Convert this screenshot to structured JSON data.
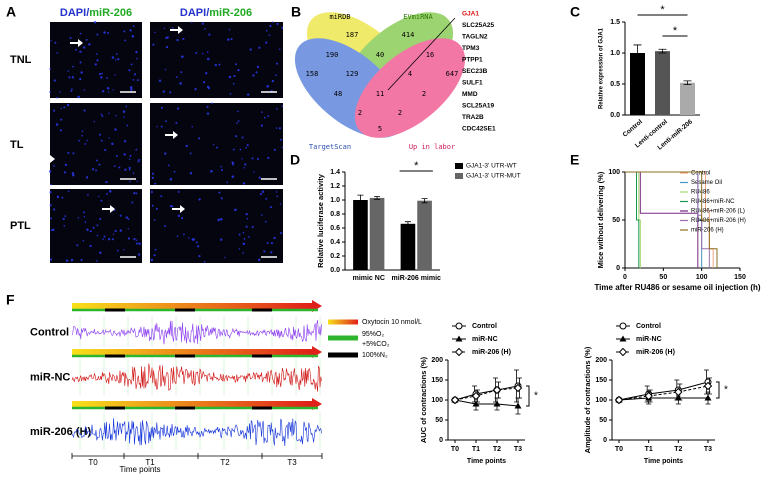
{
  "panel_a": {
    "letter": "A",
    "headers": [
      {
        "stain": "DAPI/",
        "marker": "miR-206"
      },
      {
        "stain": "DAPI/",
        "marker": "miR-206"
      }
    ],
    "rows": [
      "TNL",
      "TL",
      "PTL"
    ]
  },
  "panel_b": {
    "letter": "B",
    "sets": [
      "miRDB",
      "EVmiRNA",
      "TargetScan",
      "Up in labor"
    ],
    "counts": [
      "187",
      "414",
      "190",
      "40",
      "16",
      "158",
      "129",
      "4",
      "647",
      "48",
      "11",
      "2",
      "2",
      "2",
      "5"
    ],
    "genes": [
      "GJA1",
      "SLC25A25",
      "TAGLN2",
      "TPM3",
      "PTPP1",
      "SEC23B",
      "SULF1",
      "MMD",
      "SCL25A19",
      "TRA2B",
      "CDC42SE1"
    ]
  },
  "panel_f": {
    "letter": "F",
    "rows": [
      "Control",
      "miR-NC",
      "miR-206 (H)"
    ],
    "legend": [
      {
        "label": [
          "Oxytocin 10 nmol/L"
        ],
        "color": "#f04020"
      },
      {
        "label": [
          "95%O₂",
          "+5%CO₂"
        ],
        "color": "#2db52d"
      },
      {
        "label": [
          "100%N₂"
        ],
        "color": "#000000"
      }
    ],
    "periods": [
      "T0",
      "T1",
      "T2",
      "T3"
    ],
    "xlabel": "Time points"
  },
  "chart_data": [
    {
      "type": "bar",
      "panel": "C",
      "ylabel": "Relative expression of GJA1",
      "categories": [
        "Control",
        "Lenti-control",
        "Lenti-miR-206"
      ],
      "values": [
        1.0,
        1.03,
        0.52
      ],
      "errors": [
        0.13,
        0.03,
        0.03
      ],
      "colors": [
        "#000000",
        "#555555",
        "#aaaaaa"
      ],
      "ylim": [
        0,
        1.5
      ],
      "yticks": [
        {
          "value": 0,
          "label": "0.0"
        },
        {
          "value": 0.5,
          "label": "0.5"
        },
        {
          "value": 1,
          "label": "1.0"
        },
        {
          "value": 1.5,
          "label": "1.5"
        }
      ],
      "annotations": [
        "*",
        "*"
      ]
    },
    {
      "type": "bar",
      "panel": "D",
      "ylabel": "Relative luciferase activity",
      "categories": [
        "mimic NC",
        "miR-206 mimic"
      ],
      "series": [
        {
          "name": "GJA1-3' UTR-WT",
          "color": "#000000",
          "values": [
            1.0,
            0.66
          ],
          "errors": [
            0.07,
            0.03
          ]
        },
        {
          "name": "GJA1-3' UTR-MUT",
          "color": "#666666",
          "values": [
            1.03,
            0.99
          ],
          "errors": [
            0.02,
            0.03
          ]
        }
      ],
      "ylim": [
        0,
        1.4
      ],
      "yticks": [
        {
          "value": 0,
          "label": "0.0"
        },
        {
          "value": 0.2,
          "label": "0.2"
        },
        {
          "value": 0.4,
          "label": "0.4"
        },
        {
          "value": 0.6,
          "label": "0.6"
        },
        {
          "value": 0.8,
          "label": "0.8"
        },
        {
          "value": 1,
          "label": "1.0"
        },
        {
          "value": 1.2,
          "label": "1.2"
        },
        {
          "value": 1.4,
          "label": "1.4"
        }
      ],
      "annotations": [
        "*"
      ]
    },
    {
      "type": "line",
      "step": true,
      "panel": "E",
      "xlabel": "Time after RU486 or sesame oil injection (h)",
      "ylabel": "Mice without delivering (%)",
      "series": [
        {
          "name": "Control",
          "color": "#f4a582",
          "x": [
            0,
            105,
            110,
            115
          ],
          "values": [
            100,
            60,
            20,
            0
          ]
        },
        {
          "name": "Sesame Oil",
          "color": "#4393c3",
          "x": [
            0,
            95,
            100
          ],
          "values": [
            100,
            50,
            0
          ]
        },
        {
          "name": "RU486",
          "color": "#a6d96a",
          "x": [
            0,
            18,
            20
          ],
          "values": [
            100,
            50,
            0
          ]
        },
        {
          "name": "RU486+miR-NC",
          "color": "#1a9850",
          "x": [
            0,
            15,
            18
          ],
          "values": [
            100,
            50,
            0
          ]
        },
        {
          "name": "RU486+miR-206 (L)",
          "color": "#762a83",
          "x": [
            0,
            20,
            95
          ],
          "values": [
            100,
            57,
            0
          ]
        },
        {
          "name": "RU486+miR-206 (H)",
          "color": "#9970ab",
          "x": [
            0,
            95,
            100,
            110
          ],
          "values": [
            100,
            55,
            20,
            0
          ]
        },
        {
          "name": "miR-206 (H)",
          "color": "#8c6d1f",
          "x": [
            0,
            100,
            110,
            120
          ],
          "values": [
            100,
            50,
            20,
            0
          ]
        }
      ],
      "xlim": [
        0,
        150
      ],
      "xticks": [
        0,
        50,
        100,
        150
      ],
      "ylim": [
        0,
        100
      ],
      "yticks": [
        0,
        50,
        100
      ]
    },
    {
      "type": "line",
      "panel": "",
      "xlabel": "Time points",
      "ylabel": "AUC of contractions (%)",
      "categories": [
        "T0",
        "T1",
        "T2",
        "T3"
      ],
      "series": [
        {
          "name": "Control",
          "color": "#000000",
          "marker": "circle",
          "dashed": false,
          "values": [
            100,
            115,
            125,
            135
          ],
          "errors": [
            0,
            20,
            30,
            40
          ]
        },
        {
          "name": "miR-NC",
          "color": "#000000",
          "marker": "triangle",
          "dashed": false,
          "values": [
            100,
            90,
            90,
            85
          ],
          "errors": [
            0,
            15,
            15,
            20
          ]
        },
        {
          "name": "miR-206 (H)",
          "color": "#000000",
          "marker": "diamond",
          "dashed": true,
          "values": [
            100,
            110,
            125,
            130
          ],
          "errors": [
            0,
            15,
            20,
            25
          ]
        }
      ],
      "ylim": [
        0,
        200
      ],
      "yticks": [
        0,
        50,
        100,
        150,
        200
      ],
      "annotations": [
        "*"
      ]
    },
    {
      "type": "line",
      "panel": "",
      "xlabel": "Time points",
      "ylabel": "Amplitude of contractions (%)",
      "categories": [
        "T0",
        "T1",
        "T2",
        "T3"
      ],
      "series": [
        {
          "name": "Control",
          "color": "#000000",
          "marker": "circle",
          "dashed": false,
          "values": [
            100,
            115,
            125,
            145
          ],
          "errors": [
            0,
            20,
            25,
            30
          ]
        },
        {
          "name": "miR-NC",
          "color": "#000000",
          "marker": "triangle",
          "dashed": false,
          "values": [
            100,
            105,
            105,
            105
          ],
          "errors": [
            0,
            15,
            15,
            15
          ]
        },
        {
          "name": "miR-206 (H)",
          "color": "#000000",
          "marker": "diamond",
          "dashed": true,
          "values": [
            100,
            110,
            120,
            135
          ],
          "errors": [
            0,
            15,
            20,
            20
          ]
        }
      ],
      "ylim": [
        0,
        200
      ],
      "yticks": [
        0,
        50,
        100,
        150,
        200
      ],
      "annotations": [
        "*"
      ]
    }
  ]
}
